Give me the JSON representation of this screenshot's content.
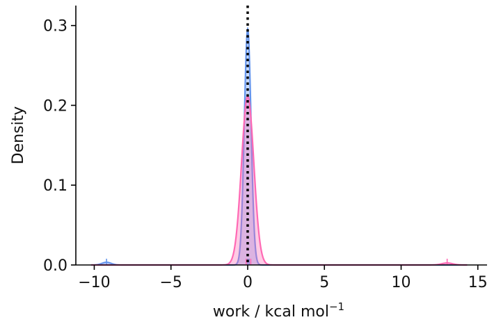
{
  "chart_data": {
    "type": "area",
    "title": "",
    "xlabel": "work / kcal mol",
    "xlabel_superscript": "−1",
    "ylabel": "Density",
    "xlim": [
      -11.2,
      15.6
    ],
    "ylim": [
      0,
      0.325
    ],
    "xticks": [
      -10,
      -5,
      0,
      5,
      10,
      15
    ],
    "xtick_labels": [
      "−10",
      "−5",
      "0",
      "5",
      "10",
      "15"
    ],
    "yticks": [
      0.0,
      0.1,
      0.2,
      0.3
    ],
    "ytick_labels": [
      "0.0",
      "0.1",
      "0.2",
      "0.3"
    ],
    "grid": false,
    "legend": "none",
    "reference_line": {
      "x": 0,
      "style": "dotted",
      "color": "#000000"
    },
    "series": [
      {
        "color": "#6495ED",
        "fill_alpha": 0.35,
        "kde": [
          {
            "center": 0.0,
            "sigma": 0.22,
            "weight": 0.163
          },
          {
            "center": -9.2,
            "sigma": 0.3,
            "weight": 0.0025
          }
        ],
        "rug": [
          -9.2,
          0.0,
          0.1
        ]
      },
      {
        "color": "#FF69B4",
        "fill_alpha": 0.35,
        "kde": [
          {
            "center": 0.0,
            "sigma": 0.4,
            "weight": 0.212
          },
          {
            "center": 13.0,
            "sigma": 0.35,
            "weight": 0.0022
          }
        ],
        "rug": [
          -0.1,
          0.2,
          13.0
        ]
      }
    ]
  }
}
